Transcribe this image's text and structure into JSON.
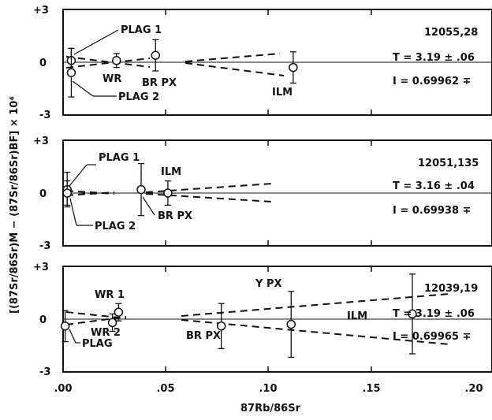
{
  "chart_data": {
    "type": "scatter",
    "xlabel": "87Rb/86Sr",
    "ylabel": "[(87Sr/86Sr)M − (87Sr/86Sr)BF] × 10⁴",
    "x_ticks": [
      ".00",
      ".05",
      ".10",
      ".15",
      ".20"
    ],
    "xlim": [
      0,
      0.215
    ],
    "panels": [
      {
        "sample": "12055,28",
        "T_text": "T = 3.19 ± .06",
        "I_text": "I = 0.69962 ∓",
        "y_ticks": [
          "+3",
          "0",
          "-3"
        ],
        "ylim": [
          -3,
          3
        ],
        "points": [
          {
            "label": "PLAG 1",
            "x": 0.004,
            "y": 0.1,
            "err": 0.7
          },
          {
            "label": "PLAG 2",
            "x": 0.004,
            "y": -0.6,
            "err": 1.4
          },
          {
            "label": "WR",
            "x": 0.026,
            "y": 0.1,
            "err": 0.4
          },
          {
            "label": "BR  PX",
            "x": 0.045,
            "y": 0.4,
            "err": 0.9
          },
          {
            "label": "ILM",
            "x": 0.112,
            "y": -0.3,
            "err": 0.9
          }
        ]
      },
      {
        "sample": "12051,135",
        "T_text": "T = 3.16 ± .04",
        "I_text": "I = 0.69938 ∓",
        "y_ticks": [
          "+3",
          "0",
          "-3"
        ],
        "ylim": [
          -3,
          3
        ],
        "points": [
          {
            "label": "PLAG 1",
            "x": 0.002,
            "y": 0.2,
            "err": 1.0
          },
          {
            "label": "PLAG 2",
            "x": 0.002,
            "y": 0.0,
            "err": 0.7
          },
          {
            "label": "BR  PX",
            "x": 0.038,
            "y": 0.2,
            "err": 1.5
          },
          {
            "label": "ILM",
            "x": 0.051,
            "y": 0.0,
            "err": 0.7
          }
        ]
      },
      {
        "sample": "12039,19",
        "T_text": "T = 3.19 ± .06",
        "I_text": "I = 0.69965 ∓",
        "y_ticks": [
          "+3",
          "0",
          "-3"
        ],
        "ylim": [
          -3,
          3
        ],
        "points": [
          {
            "label": "PLAG",
            "x": 0.001,
            "y": -0.4,
            "err": 0.9
          },
          {
            "label": "WR 1",
            "x": 0.027,
            "y": 0.4,
            "err": 0.5
          },
          {
            "label": "WR 2",
            "x": 0.024,
            "y": -0.2,
            "err": 0.5
          },
          {
            "label": "BR  PX",
            "x": 0.077,
            "y": -0.4,
            "err": 1.3
          },
          {
            "label": "Y  PX",
            "x": 0.111,
            "y": -0.3,
            "err": 1.9
          },
          {
            "label": "ILM",
            "x": 0.17,
            "y": 0.3,
            "err": 2.3
          }
        ]
      }
    ]
  }
}
